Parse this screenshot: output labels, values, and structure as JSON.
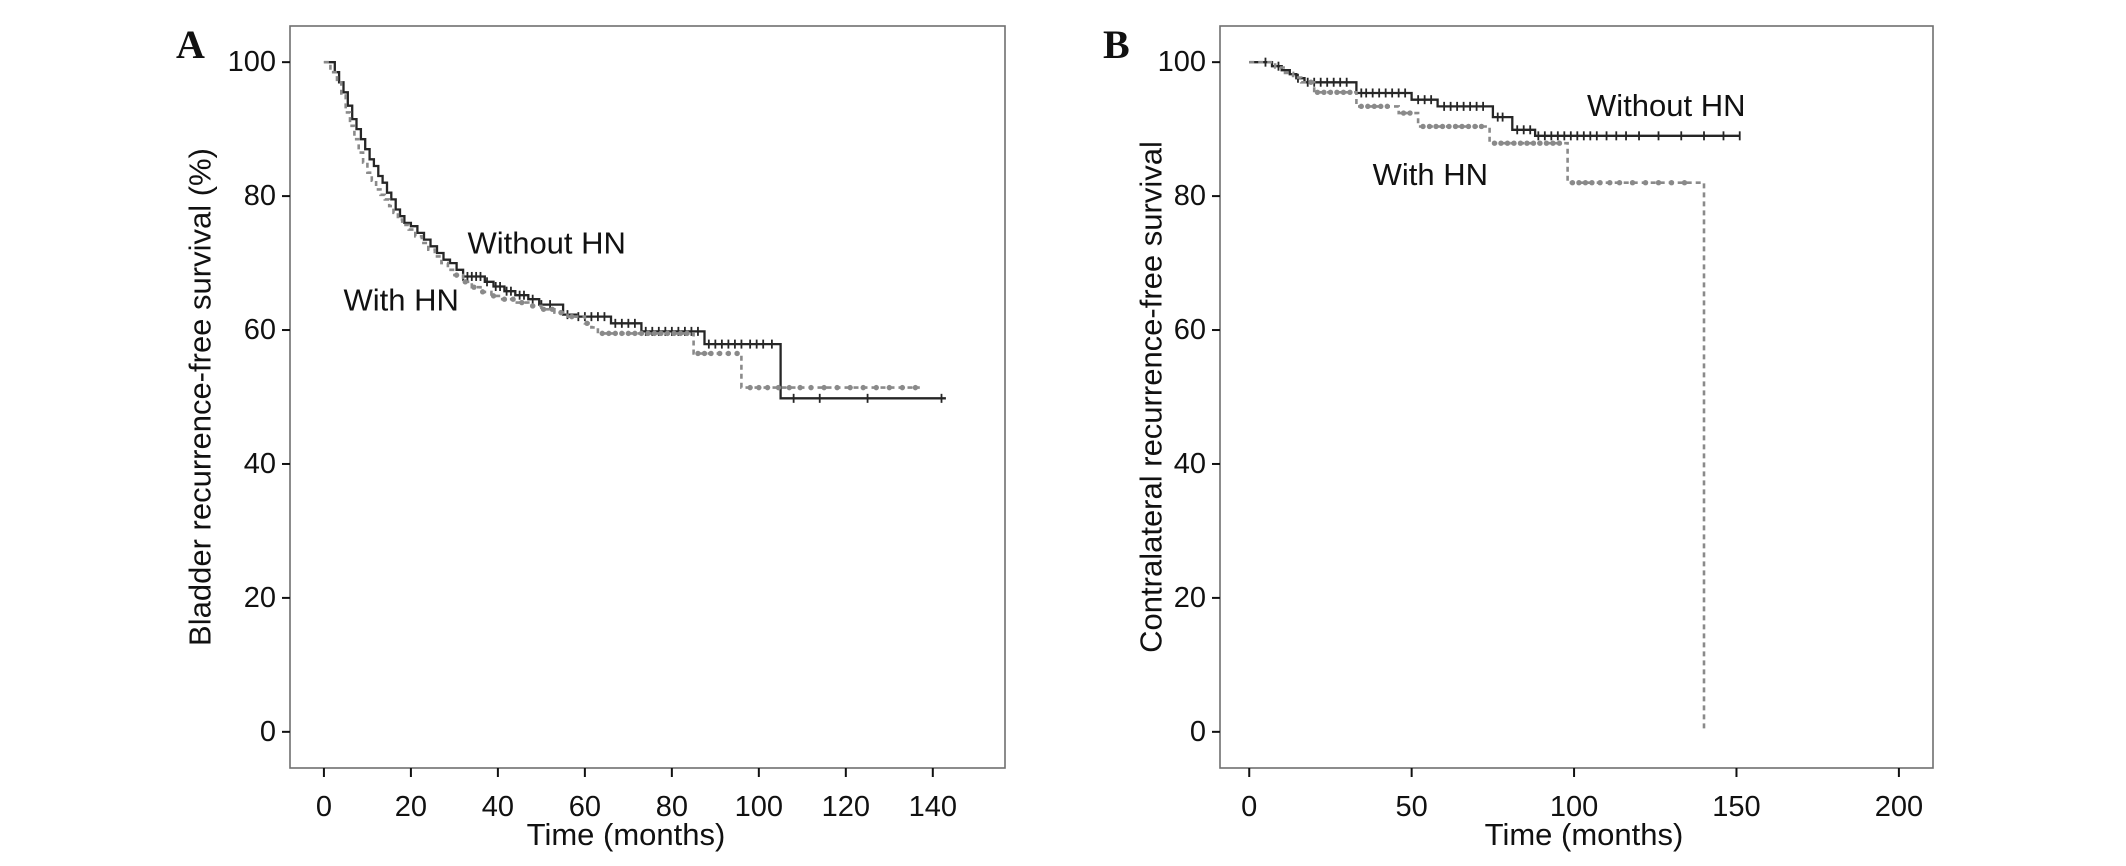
{
  "figure": {
    "background": "#ffffff",
    "text_color": "#111111",
    "frame_color": "#6f6f6f"
  },
  "chart_data": [
    {
      "type": "line",
      "subtype": "kaplan-meier-step",
      "panel_label": "A",
      "title": "",
      "xlabel": "Time (months)",
      "ylabel": "Bladder recurrence-free survival (%)",
      "xlim": [
        -7.8,
        156.6
      ],
      "ylim": [
        -5.4,
        105.4
      ],
      "xticks": [
        0,
        20,
        40,
        60,
        80,
        100,
        120,
        140
      ],
      "yticks": [
        0,
        20,
        40,
        60,
        80,
        100
      ],
      "grid": false,
      "legend": "inline-labels",
      "series": [
        {
          "name": "Without HN",
          "color": "#262626",
          "style": "solid",
          "label_pos": [
            33,
            73
          ],
          "points": [
            [
              0,
              100
            ],
            [
              2.5,
              98.5
            ],
            [
              3.5,
              97
            ],
            [
              4.5,
              95.5
            ],
            [
              5.5,
              93.5
            ],
            [
              6.5,
              91.5
            ],
            [
              7.5,
              90
            ],
            [
              8.5,
              88.5
            ],
            [
              9.5,
              87
            ],
            [
              10.5,
              85.5
            ],
            [
              11.5,
              84.5
            ],
            [
              12.5,
              83
            ],
            [
              13.5,
              82
            ],
            [
              14.5,
              80.5
            ],
            [
              15.5,
              79.5
            ],
            [
              16.5,
              78
            ],
            [
              17.5,
              77
            ],
            [
              18.5,
              76
            ],
            [
              20,
              75.5
            ],
            [
              21.5,
              74.5
            ],
            [
              23,
              73.5
            ],
            [
              24.5,
              72.5
            ],
            [
              26,
              71.5
            ],
            [
              27.5,
              70.5
            ],
            [
              29,
              70
            ],
            [
              30.5,
              69
            ],
            [
              32,
              68
            ],
            [
              37,
              67.2
            ],
            [
              39,
              66.5
            ],
            [
              41.5,
              65.8
            ],
            [
              44,
              65.2
            ],
            [
              47,
              64.6
            ],
            [
              49.5,
              63.8
            ],
            [
              55,
              62.3
            ],
            [
              58,
              62
            ],
            [
              66,
              61
            ],
            [
              73,
              59.8
            ],
            [
              87.5,
              57.9
            ],
            [
              105,
              49.8
            ],
            [
              143,
              49.8
            ]
          ],
          "censor_times": [
            32,
            33,
            34,
            35,
            36,
            37.5,
            39.5,
            40.5,
            42,
            43,
            45,
            46,
            48,
            50,
            52,
            56,
            58.5,
            60,
            61.5,
            63,
            64.5,
            67,
            68.5,
            70,
            71.5,
            74,
            75.5,
            77,
            78.5,
            80,
            81.5,
            83,
            84.5,
            86,
            88.5,
            90,
            91.5,
            93,
            94.5,
            96,
            98,
            99.5,
            101,
            103,
            108,
            114,
            125,
            142
          ]
        },
        {
          "name": "With HN",
          "color": "#8a8a8a",
          "style": "dashed",
          "label_pos": [
            4.5,
            64.5
          ],
          "points": [
            [
              0,
              100
            ],
            [
              1.5,
              98.5
            ],
            [
              3,
              97
            ],
            [
              4,
              95
            ],
            [
              5,
              92.5
            ],
            [
              6,
              90.5
            ],
            [
              7,
              88.5
            ],
            [
              8,
              86.5
            ],
            [
              9,
              85
            ],
            [
              10,
              83.5
            ],
            [
              11,
              82.3
            ],
            [
              12,
              81
            ],
            [
              13,
              80.2
            ],
            [
              14,
              79.5
            ],
            [
              15,
              78.5
            ],
            [
              16,
              77.5
            ],
            [
              17,
              76.5
            ],
            [
              18,
              75.7
            ],
            [
              19.5,
              75
            ],
            [
              21,
              74
            ],
            [
              22.5,
              73
            ],
            [
              24,
              72
            ],
            [
              25.5,
              71
            ],
            [
              27,
              70
            ],
            [
              28.5,
              69
            ],
            [
              30,
              68.2
            ],
            [
              32,
              67.2
            ],
            [
              34,
              66.4
            ],
            [
              36,
              65.7
            ],
            [
              38.5,
              65.1
            ],
            [
              41,
              64.6
            ],
            [
              44,
              64.1
            ],
            [
              47,
              63.6
            ],
            [
              50,
              63.1
            ],
            [
              53,
              62.6
            ],
            [
              56,
              62
            ],
            [
              60,
              61
            ],
            [
              61.5,
              60.4
            ],
            [
              63,
              59.5
            ],
            [
              85,
              56.5
            ],
            [
              96,
              51.4
            ],
            [
              137,
              51.4
            ]
          ],
          "censor_times": [
            30.5,
            32.5,
            34.5,
            36.5,
            39,
            41.5,
            43.5,
            45.5,
            48,
            50.5,
            52.5,
            54.5,
            57,
            60.5,
            64,
            65.5,
            67,
            68.5,
            70,
            71.5,
            73,
            74.5,
            76,
            77.5,
            79,
            80.5,
            82,
            83.5,
            86,
            87.5,
            89,
            91,
            93,
            95,
            98,
            100,
            102,
            104.5,
            107,
            109.5,
            112,
            115,
            118,
            121,
            124,
            127,
            130,
            133,
            136
          ]
        }
      ]
    },
    {
      "type": "line",
      "subtype": "kaplan-meier-step",
      "panel_label": "B",
      "title": "",
      "xlabel": "Time (months)",
      "ylabel": "Contralateral recurrence-free survival",
      "xlim": [
        -9,
        210.5
      ],
      "ylim": [
        -5.4,
        105.4
      ],
      "xticks": [
        0,
        50,
        100,
        150,
        200
      ],
      "yticks": [
        0,
        20,
        40,
        60,
        80,
        100
      ],
      "grid": false,
      "legend": "inline-labels",
      "series": [
        {
          "name": "Without HN",
          "color": "#262626",
          "style": "solid",
          "label_pos": [
            104,
            93.5
          ],
          "points": [
            [
              0,
              100
            ],
            [
              7,
              99.4
            ],
            [
              10,
              98.8
            ],
            [
              12.5,
              98.2
            ],
            [
              14.5,
              97.6
            ],
            [
              17,
              97
            ],
            [
              33,
              95.4
            ],
            [
              50,
              94.4
            ],
            [
              58,
              93.4
            ],
            [
              75,
              91.8
            ],
            [
              81,
              89.9
            ],
            [
              88,
              89
            ],
            [
              151,
              89
            ]
          ],
          "censor_times": [
            5,
            9,
            15,
            18,
            20,
            22,
            24,
            26,
            28,
            30,
            34.5,
            36,
            38,
            40,
            42,
            44,
            46,
            48,
            52,
            54,
            56,
            60,
            62,
            64,
            66,
            68,
            70,
            72,
            76.5,
            78,
            82.5,
            84.5,
            86.5,
            89,
            91,
            93,
            95,
            97,
            99,
            101,
            103,
            105,
            107,
            110,
            113,
            116,
            120,
            126,
            133,
            140,
            146,
            151
          ]
        },
        {
          "name": "With HN",
          "color": "#8a8a8a",
          "style": "dashed",
          "label_pos": [
            38,
            83.2
          ],
          "points": [
            [
              0,
              100
            ],
            [
              8,
              99.2
            ],
            [
              11,
              98.4
            ],
            [
              13.5,
              97.7
            ],
            [
              16,
              97
            ],
            [
              20,
              95.5
            ],
            [
              33,
              93.4
            ],
            [
              46,
              92.4
            ],
            [
              52,
              90.4
            ],
            [
              74,
              87.9
            ],
            [
              98,
              82
            ],
            [
              140,
              0
            ]
          ],
          "censor_times": [
            19,
            21,
            23,
            25,
            27,
            29,
            31,
            34.5,
            36.5,
            38.5,
            40.5,
            42.5,
            47.5,
            49.5,
            53.5,
            55.5,
            57.5,
            59.5,
            61.5,
            63.5,
            65.5,
            67.5,
            69.5,
            71.5,
            75.5,
            77.5,
            79.5,
            81.5,
            83.5,
            85.5,
            87.5,
            89.5,
            91.5,
            93.5,
            95.5,
            99.5,
            101.5,
            103.5,
            105.5,
            108,
            111,
            114,
            118,
            122,
            126,
            130,
            134
          ]
        }
      ]
    }
  ]
}
